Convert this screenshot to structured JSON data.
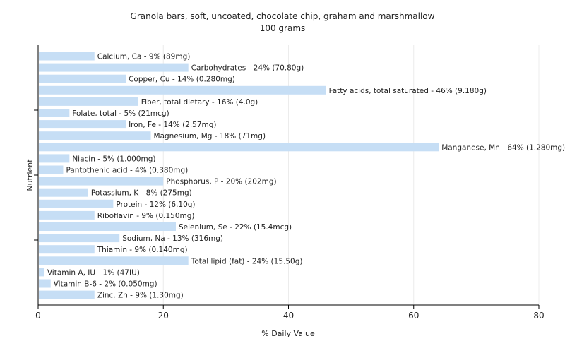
{
  "chart_data": {
    "type": "bar",
    "orientation": "horizontal",
    "title": "Granola bars, soft, uncoated, chocolate chip, graham and marshmallow",
    "subtitle": "100 grams",
    "xlabel": "% Daily Value",
    "ylabel": "Nutrient",
    "xlim": [
      0,
      80
    ],
    "xticks": [
      0,
      20,
      40,
      60,
      80
    ],
    "grid": true,
    "categories": [
      "Calcium, Ca",
      "Carbohydrates",
      "Copper, Cu",
      "Fatty acids, total saturated",
      "Fiber, total dietary",
      "Folate, total",
      "Iron, Fe",
      "Magnesium, Mg",
      "Manganese, Mn",
      "Niacin",
      "Pantothenic acid",
      "Phosphorus, P",
      "Potassium, K",
      "Protein",
      "Riboflavin",
      "Selenium, Se",
      "Sodium, Na",
      "Thiamin",
      "Total lipid (fat)",
      "Vitamin A, IU",
      "Vitamin B-6",
      "Zinc, Zn"
    ],
    "values": [
      9,
      24,
      14,
      46,
      16,
      5,
      14,
      18,
      64,
      5,
      4,
      20,
      8,
      12,
      9,
      22,
      13,
      9,
      24,
      1,
      2,
      9
    ],
    "labels": [
      "Calcium, Ca - 9% (89mg)",
      "Carbohydrates - 24% (70.80g)",
      "Copper, Cu - 14% (0.280mg)",
      "Fatty acids, total saturated - 46% (9.180g)",
      "Fiber, total dietary - 16% (4.0g)",
      "Folate, total - 5% (21mcg)",
      "Iron, Fe - 14% (2.57mg)",
      "Magnesium, Mg - 18% (71mg)",
      "Manganese, Mn - 64% (1.280mg)",
      "Niacin - 5% (1.000mg)",
      "Pantothenic acid - 4% (0.380mg)",
      "Phosphorus, P - 20% (202mg)",
      "Potassium, K - 8% (275mg)",
      "Protein - 12% (6.10g)",
      "Riboflavin - 9% (0.150mg)",
      "Selenium, Se - 22% (15.4mcg)",
      "Sodium, Na - 13% (316mg)",
      "Thiamin - 9% (0.140mg)",
      "Total lipid (fat) - 24% (15.50g)",
      "Vitamin A, IU - 1% (47IU)",
      "Vitamin B-6 - 2% (0.050mg)",
      "Zinc, Zn - 9% (1.30mg)"
    ],
    "bar_color": "#c6def5"
  }
}
